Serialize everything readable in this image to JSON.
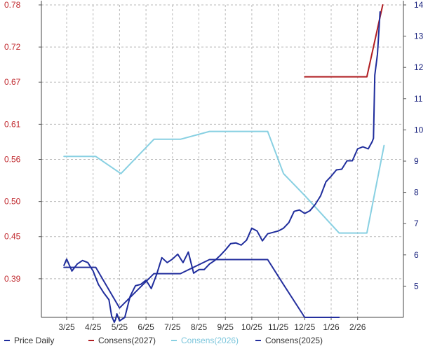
{
  "chart_data": {
    "type": "line",
    "title": "",
    "xlabel": "",
    "ylabel": "",
    "x_tick_labels": [
      "3/25",
      "4/25",
      "5/25",
      "6/25",
      "7/25",
      "8/25",
      "9/25",
      "10/25",
      "11/25",
      "12/25",
      "1/26",
      "2/26"
    ],
    "left_axis": {
      "tick_labels": [
        "0.78",
        "0.72",
        "0.67",
        "0.61",
        "0.56",
        "0.50",
        "0.45",
        "0.39"
      ],
      "ylim": [
        0.335,
        0.78
      ],
      "color": "#c0282d"
    },
    "right_axis": {
      "tick_labels": [
        "14",
        "13",
        "12",
        "11",
        "10",
        "9",
        "8",
        "7",
        "6",
        "5"
      ],
      "ylim": [
        4.0,
        14.0
      ],
      "color": "#1a237e"
    },
    "grid": true,
    "legend_position": "bottom",
    "series": [
      {
        "name": "Price Daily",
        "axis": "left",
        "color": "#1f2d9c",
        "x": [
          -0.1,
          0.0,
          0.2,
          0.4,
          0.6,
          0.8,
          1.0,
          1.2,
          1.4,
          1.6,
          1.7,
          1.8,
          1.85,
          1.9,
          2.0,
          2.2,
          2.4,
          2.6,
          2.8,
          3.0,
          3.2,
          3.4,
          3.6,
          3.8,
          4.0,
          4.2,
          4.4,
          4.6,
          4.8,
          5.0,
          5.2,
          5.4,
          5.6,
          5.8,
          6.0,
          6.2,
          6.4,
          6.6,
          6.8,
          7.0,
          7.2,
          7.4,
          7.6,
          7.8,
          8.0,
          8.2,
          8.4,
          8.6,
          8.8,
          9.0,
          9.2,
          9.4,
          9.6,
          9.8,
          10.0,
          10.2,
          10.4,
          10.6,
          10.8,
          11.0,
          11.2,
          11.4,
          11.55,
          11.6,
          11.65,
          11.75,
          11.85
        ],
        "y": [
          0.409,
          0.418,
          0.401,
          0.411,
          0.416,
          0.413,
          0.401,
          0.382,
          0.37,
          0.36,
          0.337,
          0.328,
          0.332,
          0.34,
          0.33,
          0.335,
          0.365,
          0.38,
          0.382,
          0.388,
          0.376,
          0.396,
          0.42,
          0.413,
          0.418,
          0.425,
          0.413,
          0.428,
          0.398,
          0.403,
          0.403,
          0.411,
          0.416,
          0.423,
          0.431,
          0.44,
          0.441,
          0.438,
          0.445,
          0.462,
          0.458,
          0.444,
          0.454,
          0.456,
          0.458,
          0.462,
          0.47,
          0.486,
          0.488,
          0.483,
          0.487,
          0.496,
          0.508,
          0.528,
          0.536,
          0.545,
          0.546,
          0.558,
          0.558,
          0.575,
          0.578,
          0.575,
          0.585,
          0.59,
          0.68,
          0.71,
          0.77
        ]
      },
      {
        "name": "Consens(2027)",
        "axis": "right",
        "color": "#b01e22",
        "x": [
          9.0,
          11.35,
          11.95
        ],
        "y": [
          11.7,
          11.7,
          14.0
        ]
      },
      {
        "name": "Consens(2026)",
        "axis": "right",
        "color": "#88d0e2",
        "x": [
          -0.1,
          1.1,
          2.05,
          3.3,
          4.3,
          5.4,
          6.2,
          7.6,
          8.2,
          9.0,
          10.3,
          11.35,
          12.0
        ],
        "y": [
          9.15,
          9.15,
          8.6,
          9.7,
          9.7,
          9.95,
          9.95,
          9.95,
          8.6,
          7.9,
          6.7,
          6.7,
          9.5
        ]
      },
      {
        "name": "Consens(2025)",
        "axis": "right",
        "color": "#25309e",
        "x": [
          -0.1,
          1.1,
          2.0,
          3.3,
          4.3,
          5.4,
          6.2,
          7.6,
          8.2,
          9.0,
          10.3
        ],
        "y": [
          5.6,
          5.6,
          4.3,
          5.4,
          5.4,
          5.85,
          5.85,
          5.85,
          5.05,
          4.0,
          4.0
        ]
      }
    ]
  }
}
